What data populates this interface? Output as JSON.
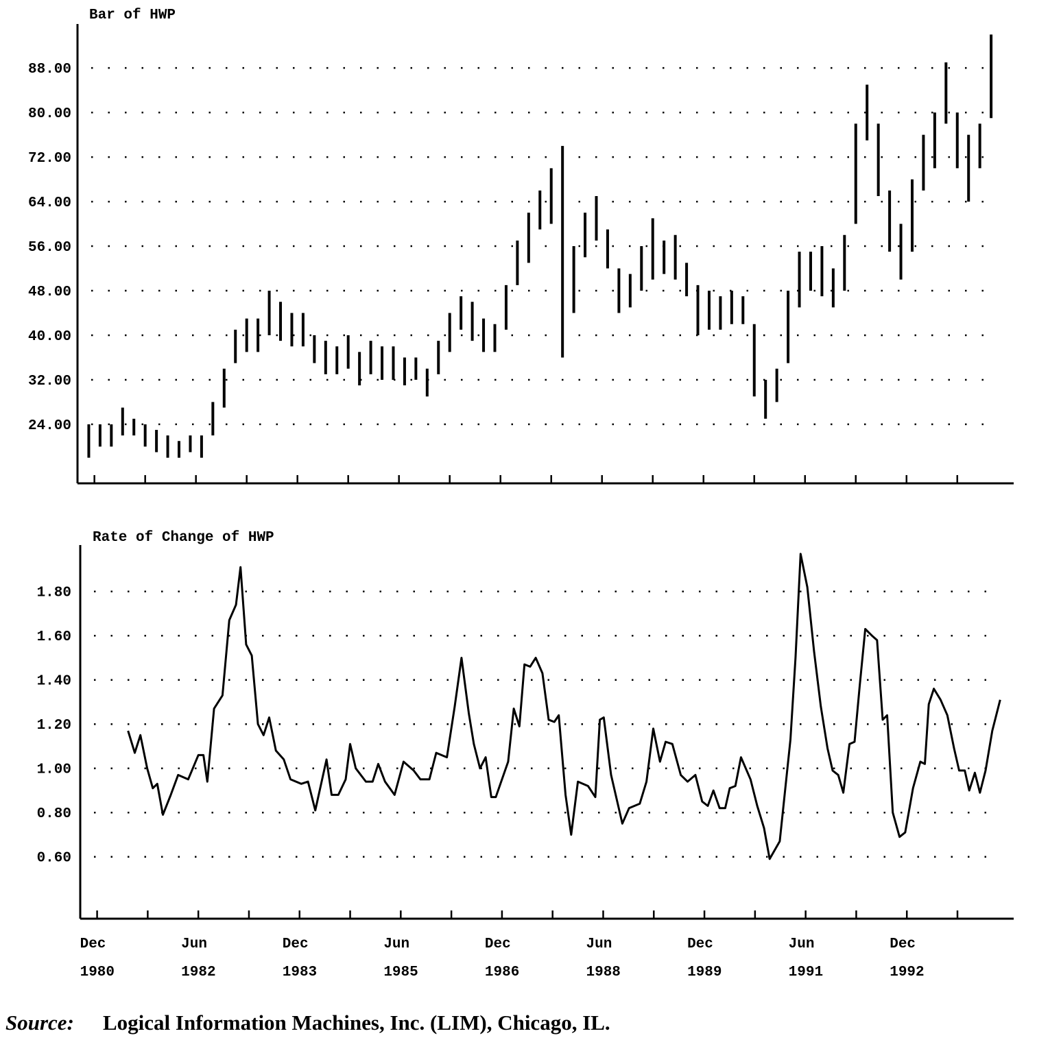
{
  "chart_data": [
    {
      "type": "bar",
      "title": "Bar of HWP",
      "x": [
        -1,
        1,
        3,
        5,
        7,
        9,
        11,
        13,
        15,
        17,
        19,
        21,
        23,
        25,
        27,
        29,
        31,
        33,
        35,
        37,
        39,
        41,
        43,
        45,
        47,
        49,
        51,
        53,
        55,
        57,
        59,
        61,
        63,
        65,
        67,
        69,
        71,
        73,
        75,
        77,
        79,
        81,
        83,
        85,
        87,
        89,
        91,
        93,
        95,
        97,
        99,
        101,
        103,
        105,
        107,
        109,
        111,
        113,
        115,
        117,
        119,
        121,
        123,
        125,
        127,
        129,
        131,
        133,
        135,
        137,
        139,
        141,
        143,
        145,
        147,
        149,
        151,
        153,
        155,
        157,
        159
      ],
      "high": [
        24,
        24,
        24,
        27,
        25,
        24,
        23,
        22,
        21,
        22,
        22,
        28,
        34,
        41,
        43,
        43,
        48,
        46,
        44,
        44,
        40,
        39,
        38,
        40,
        37,
        39,
        38,
        38,
        36,
        36,
        34,
        39,
        44,
        47,
        46,
        43,
        42,
        49,
        57,
        62,
        66,
        70,
        74,
        56,
        62,
        65,
        59,
        52,
        51,
        56,
        61,
        57,
        58,
        53,
        49,
        48,
        47,
        48,
        47,
        42,
        32,
        34,
        48,
        55,
        55,
        56,
        52,
        58,
        78,
        85,
        78,
        66,
        60,
        68,
        76,
        80,
        89,
        80,
        76,
        78,
        94
      ],
      "low": [
        18,
        20,
        20,
        22,
        22,
        20,
        19,
        18,
        18,
        19,
        18,
        22,
        27,
        35,
        37,
        37,
        40,
        39,
        38,
        38,
        35,
        33,
        33,
        34,
        31,
        33,
        32,
        32,
        31,
        32,
        29,
        33,
        37,
        41,
        39,
        37,
        37,
        41,
        49,
        53,
        59,
        60,
        36,
        44,
        54,
        57,
        52,
        44,
        45,
        48,
        50,
        51,
        50,
        47,
        40,
        41,
        41,
        42,
        42,
        29,
        25,
        28,
        35,
        45,
        48,
        47,
        45,
        48,
        60,
        75,
        65,
        55,
        50,
        55,
        66,
        70,
        78,
        70,
        64,
        70,
        79
      ],
      "color": "#000000",
      "xlim": [
        -3,
        163
      ],
      "xticks": [
        0,
        9,
        18,
        27,
        36,
        45,
        54,
        63,
        72,
        81,
        90,
        99,
        108,
        117,
        126,
        135,
        144,
        153
      ],
      "xtick_labels": false,
      "ylim": [
        13.4,
        95.9
      ],
      "yticks": [
        {
          "value": 24,
          "label": "24.00"
        },
        {
          "value": 32,
          "label": "32.00"
        },
        {
          "value": 40,
          "label": "40.00"
        },
        {
          "value": 48,
          "label": "48.00"
        },
        {
          "value": 56,
          "label": "56.00"
        },
        {
          "value": 64,
          "label": "64.00"
        },
        {
          "value": 72,
          "label": "72.00"
        },
        {
          "value": 80,
          "label": "80.00"
        },
        {
          "value": 88,
          "label": "88.00"
        }
      ],
      "grid": "dotted"
    },
    {
      "type": "line",
      "title": "Rate of Change of HWP",
      "x": [
        5.5,
        6.7,
        7.7,
        8.9,
        9.9,
        10.7,
        11.7,
        13.1,
        14.4,
        16.2,
        18,
        18.9,
        19.6,
        20.8,
        22.3,
        23.5,
        24.7,
        25.5,
        26.5,
        27.5,
        28.6,
        29.6,
        30.6,
        31.8,
        33.2,
        34.4,
        36.3,
        37.5,
        38.8,
        40.8,
        41.7,
        42.9,
        44.2,
        45,
        46,
        47.8,
        49,
        50,
        51.2,
        52.9,
        54.5,
        56.3,
        57.5,
        59.1,
        60.3,
        62.2,
        63.6,
        64.8,
        66.1,
        67,
        68.1,
        69.1,
        70.1,
        70.9,
        73.1,
        74.1,
        75.1,
        76,
        77,
        78,
        79.2,
        80.3,
        81.3,
        82.1,
        83.3,
        84.3,
        85.5,
        87.3,
        88.6,
        89.4,
        90.1,
        91.4,
        93.4,
        94.6,
        96.5,
        97.7,
        98.9,
        100.1,
        101.1,
        102.3,
        103.8,
        105,
        106.4,
        107.6,
        108.6,
        109.6,
        110.7,
        111.7,
        112.5,
        113.5,
        114.5,
        116.2,
        117.4,
        118.6,
        119.6,
        121.4,
        123.3,
        124.2,
        125.1,
        126.3,
        127.5,
        128.7,
        129.9,
        130.8,
        131.8,
        132.7,
        133.8,
        134.7,
        135.6,
        136.6,
        137.8,
        138.7,
        139.7,
        140.5,
        141.5,
        142.7,
        143.7,
        145.1,
        146.4,
        147.2,
        147.9,
        148.8,
        150,
        151.2,
        152.4,
        153.3,
        154.3,
        155.1,
        156.1,
        157,
        158,
        159.2,
        160.6
      ],
      "values": [
        1.17,
        1.07,
        1.15,
        1.0,
        0.91,
        0.93,
        0.79,
        0.88,
        0.97,
        0.95,
        1.06,
        1.06,
        0.94,
        1.27,
        1.33,
        1.67,
        1.74,
        1.91,
        1.56,
        1.51,
        1.2,
        1.15,
        1.23,
        1.08,
        1.04,
        0.95,
        0.93,
        0.94,
        0.81,
        1.04,
        0.88,
        0.88,
        0.95,
        1.11,
        1.0,
        0.94,
        0.94,
        1.02,
        0.94,
        0.88,
        1.03,
        0.99,
        0.95,
        0.95,
        1.07,
        1.05,
        1.28,
        1.5,
        1.25,
        1.11,
        1.0,
        1.05,
        0.87,
        0.87,
        1.03,
        1.27,
        1.19,
        1.47,
        1.46,
        1.5,
        1.43,
        1.22,
        1.21,
        1.24,
        0.88,
        0.7,
        0.94,
        0.92,
        0.87,
        1.22,
        1.23,
        0.97,
        0.75,
        0.82,
        0.84,
        0.94,
        1.18,
        1.03,
        1.12,
        1.11,
        0.97,
        0.94,
        0.97,
        0.85,
        0.83,
        0.9,
        0.82,
        0.82,
        0.91,
        0.92,
        1.05,
        0.95,
        0.83,
        0.73,
        0.59,
        0.67,
        1.13,
        1.5,
        1.97,
        1.82,
        1.53,
        1.28,
        1.09,
        0.99,
        0.97,
        0.89,
        1.11,
        1.12,
        1.37,
        1.63,
        1.6,
        1.58,
        1.22,
        1.24,
        0.8,
        0.69,
        0.71,
        0.91,
        1.03,
        1.02,
        1.29,
        1.36,
        1.31,
        1.24,
        1.09,
        0.99,
        0.99,
        0.9,
        0.98,
        0.89,
        0.99,
        1.17,
        1.31
      ],
      "color": "#000000",
      "xlim": [
        -3,
        163
      ],
      "xticks": [
        {
          "value": 0,
          "label": "Dec 1980"
        },
        {
          "value": 18,
          "label": "Jun 1982"
        },
        {
          "value": 36,
          "label": "Dec 1983"
        },
        {
          "value": 54,
          "label": "Jun 1985"
        },
        {
          "value": 72,
          "label": "Dec 1986"
        },
        {
          "value": 90,
          "label": "Jun 1988"
        },
        {
          "value": 108,
          "label": "Dec 1989"
        },
        {
          "value": 126,
          "label": "Jun 1991"
        },
        {
          "value": 144,
          "label": "Dec 1992"
        }
      ],
      "minor_xticks": [
        9,
        27,
        45,
        63,
        81,
        99,
        117,
        135,
        153
      ],
      "ylim": [
        0.32,
        2.01
      ],
      "yticks": [
        {
          "value": 0.6,
          "label": "0.60"
        },
        {
          "value": 0.8,
          "label": "0.80"
        },
        {
          "value": 1.0,
          "label": "1.00"
        },
        {
          "value": 1.2,
          "label": "1.20"
        },
        {
          "value": 1.4,
          "label": "1.40"
        },
        {
          "value": 1.6,
          "label": "1.60"
        },
        {
          "value": 1.8,
          "label": "1.80"
        }
      ],
      "grid": "dotted"
    }
  ],
  "footer": {
    "label": "Source:",
    "text": "Logical Information Machines, Inc. (LIM), Chicago, IL."
  }
}
